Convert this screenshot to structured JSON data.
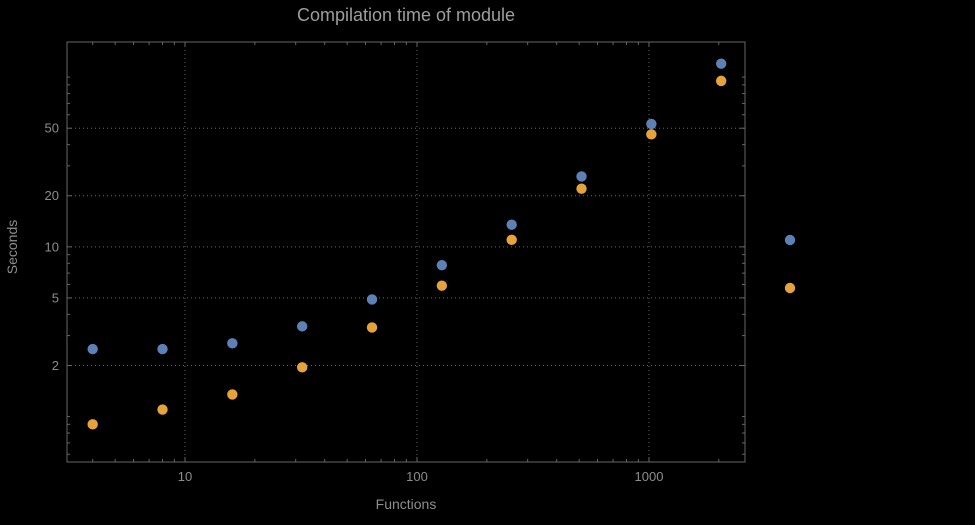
{
  "chart_data": {
    "type": "scatter",
    "title": "Compilation time of module",
    "xlabel": "Functions",
    "ylabel": "Seconds",
    "x_scale": "log",
    "y_scale": "log",
    "xlim": [
      3.1,
      2594
    ],
    "ylim": [
      0.54,
      161
    ],
    "grid": "dotted",
    "x_ticks": [
      {
        "value": 10,
        "label": "10"
      },
      {
        "value": 100,
        "label": "100"
      },
      {
        "value": 1000,
        "label": "1000"
      }
    ],
    "y_ticks": [
      {
        "value": 2,
        "label": "2"
      },
      {
        "value": 5,
        "label": "5"
      },
      {
        "value": 10,
        "label": "10"
      },
      {
        "value": 20,
        "label": "20"
      },
      {
        "value": 50,
        "label": "50"
      }
    ],
    "x": [
      4,
      8,
      16,
      32,
      64,
      128,
      256,
      512,
      1024,
      2048
    ],
    "series": [
      {
        "name": "blue",
        "color": "#5E81B5",
        "values": [
          2.5,
          2.5,
          2.7,
          3.4,
          4.9,
          7.8,
          13.5,
          26,
          53,
          120
        ]
      },
      {
        "name": "orange",
        "color": "#E6A33C",
        "values": [
          0.9,
          1.1,
          1.35,
          1.95,
          3.35,
          5.9,
          11,
          22,
          46,
          95
        ]
      }
    ],
    "legend": {
      "position": "right-outside",
      "markers": [
        {
          "color": "#5E81B5"
        },
        {
          "color": "#E6A33C"
        }
      ]
    }
  },
  "colors": {
    "background": "#000000",
    "frame": "#666666",
    "grid": "#666666",
    "title_text": "#9e9e9e",
    "label_text": "#8d8d8d",
    "tick_text": "#8d8d8d"
  }
}
